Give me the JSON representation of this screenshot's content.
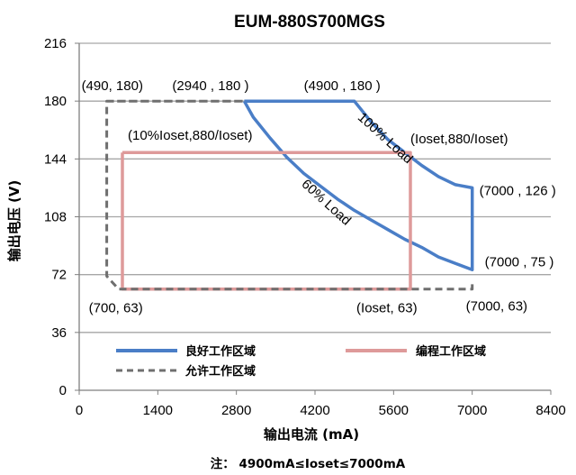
{
  "chart_data": {
    "type": "line",
    "title": "EUM-880S700MGS",
    "xlabel": "输出电流 (mA)",
    "ylabel": "输出电压 (V)",
    "xlim": [
      0,
      8400
    ],
    "ylim": [
      0,
      216
    ],
    "x_ticks": [
      "0",
      "1400",
      "2800",
      "4200",
      "5600",
      "7000",
      "8400"
    ],
    "y_ticks": [
      "0",
      "36",
      "72",
      "108",
      "144",
      "180",
      "216"
    ],
    "grid": "horizontal",
    "legend_position": "bottom-inside",
    "series": [
      {
        "name": "良好工作区域",
        "color": "#4a7ec7",
        "style": "solid",
        "points": [
          [
            2940,
            180
          ],
          [
            4900,
            180
          ],
          [
            5200,
            167
          ],
          [
            5500,
            156
          ],
          [
            5800,
            148
          ],
          [
            6100,
            140
          ],
          [
            6400,
            133
          ],
          [
            6700,
            128
          ],
          [
            7000,
            126
          ],
          [
            7000,
            75
          ],
          [
            6700,
            79
          ],
          [
            6400,
            83
          ],
          [
            6100,
            89
          ],
          [
            5800,
            94
          ],
          [
            5500,
            100
          ],
          [
            5200,
            106
          ],
          [
            4900,
            112
          ],
          [
            4600,
            119
          ],
          [
            4300,
            127
          ],
          [
            4000,
            135
          ],
          [
            3700,
            145
          ],
          [
            3400,
            157
          ],
          [
            3100,
            170
          ],
          [
            2940,
            180
          ]
        ]
      },
      {
        "name": "编程工作区域",
        "color": "#de9a9a",
        "style": "solid",
        "points": [
          [
            770,
            148
          ],
          [
            5900,
            148
          ],
          [
            5900,
            63
          ],
          [
            770,
            63
          ],
          [
            770,
            148
          ]
        ]
      },
      {
        "name": "允许工作区域",
        "color": "#6f6f6f",
        "style": "dashed",
        "points": [
          [
            490,
            180
          ],
          [
            2940,
            180
          ],
          [
            2940,
            180
          ],
          [
            490,
            180
          ],
          [
            490,
            71
          ],
          [
            700,
            63
          ],
          [
            7000,
            63
          ],
          [
            7000,
            66
          ]
        ]
      }
    ],
    "annotations": [
      {
        "text": "(490, 180)",
        "x": 490,
        "y": 180
      },
      {
        "text": "(2940 , 180 )",
        "x": 2940,
        "y": 180
      },
      {
        "text": "(4900 , 180 )",
        "x": 4900,
        "y": 180
      },
      {
        "text": "(10%Ioset,880/Ioset)",
        "x": 770,
        "y": 148
      },
      {
        "text": "(Ioset,880/Ioset)",
        "x": 5900,
        "y": 148
      },
      {
        "text": "(7000 , 126 )",
        "x": 7000,
        "y": 126
      },
      {
        "text": "(7000 , 75 )",
        "x": 7000,
        "y": 75
      },
      {
        "text": "(7000, 63)",
        "x": 7000,
        "y": 63
      },
      {
        "text": "(700, 63)",
        "x": 700,
        "y": 63
      },
      {
        "text": "(Ioset, 63)",
        "x": 5900,
        "y": 63
      },
      {
        "text": "100% Load",
        "x": 5400,
        "y": 155,
        "rotation": 42
      },
      {
        "text": "60% Load",
        "x": 4350,
        "y": 115,
        "rotation": 42
      }
    ],
    "note": "注： 4900mA≤Ioset≤7000mA"
  }
}
